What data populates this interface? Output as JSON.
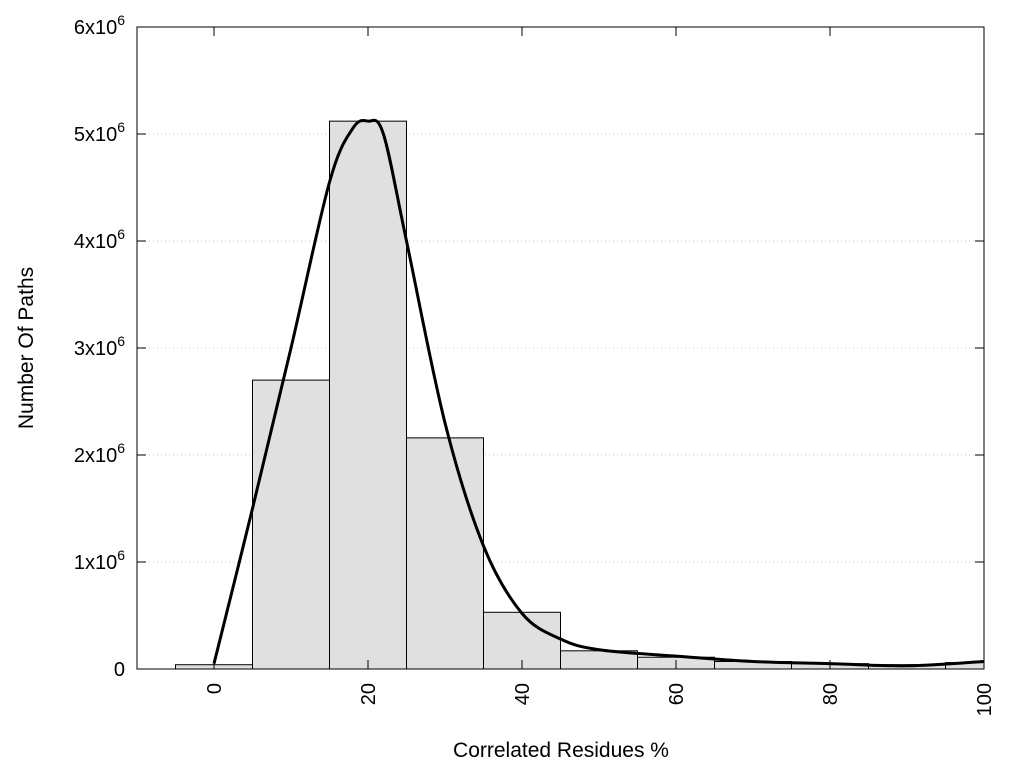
{
  "chart_data": {
    "type": "bar",
    "title": "",
    "xlabel": "Correlated Residues %",
    "ylabel": "Number Of Paths",
    "xlim": [
      -10,
      100
    ],
    "ylim": [
      0,
      6000000
    ],
    "grid": "horizontal dotted",
    "bars": {
      "name": "",
      "bin_width": 10,
      "x": [
        0,
        10,
        20,
        30,
        40,
        50,
        60,
        70,
        80,
        90,
        100
      ],
      "values": [
        40000,
        2700000,
        5120000,
        2160000,
        530000,
        170000,
        110000,
        70000,
        50000,
        40000,
        60000
      ]
    },
    "curve": {
      "name": "",
      "x": [
        0,
        5,
        10,
        15,
        18,
        20,
        22,
        25,
        30,
        35,
        40,
        45,
        50,
        60,
        70,
        80,
        90,
        100
      ],
      "y": [
        50000,
        1500000,
        3000000,
        4550000,
        5050000,
        5120000,
        5000000,
        4000000,
        2300000,
        1150000,
        520000,
        280000,
        180000,
        120000,
        70000,
        50000,
        30000,
        70000
      ]
    },
    "x_ticks": [
      0,
      20,
      40,
      60,
      80,
      100
    ],
    "x_tick_labels": [
      "0",
      "20",
      "40",
      "60",
      "80",
      "100"
    ],
    "y_ticks": [
      0,
      1000000,
      2000000,
      3000000,
      4000000,
      5000000,
      6000000
    ],
    "y_tick_labels": [
      {
        "base": "0",
        "exp": ""
      },
      {
        "base": "1x10",
        "exp": "6"
      },
      {
        "base": "2x10",
        "exp": "6"
      },
      {
        "base": "3x10",
        "exp": "6"
      },
      {
        "base": "4x10",
        "exp": "6"
      },
      {
        "base": "5x10",
        "exp": "6"
      },
      {
        "base": "6x10",
        "exp": "6"
      }
    ],
    "colors": {
      "bar_fill": "#e0e0e0",
      "bar_stroke": "#000000",
      "curve": "#000000",
      "grid": "#c8c8c8"
    }
  }
}
